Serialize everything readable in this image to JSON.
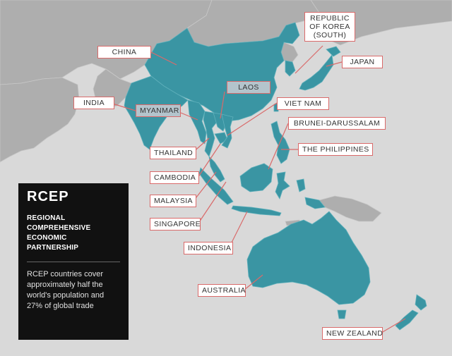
{
  "panel": {
    "title": "RCEP",
    "subtitle": "REGIONAL COMPREHENSIVE ECONOMIC PARTNERSHIP",
    "description": "RCEP countries cover approximately half the world's population and 27% of global trade"
  },
  "labels": {
    "china": "CHINA",
    "korea": "REPUBLIC OF KOREA (SOUTH)",
    "japan": "JAPAN",
    "laos": "LAOS",
    "india": "INDIA",
    "myanmar": "MYANMAR",
    "vietnam": "VIET NAM",
    "brunei": "BRUNEI-DARUSSALAM",
    "thailand": "THAILAND",
    "philippines": "THE PHILIPPINES",
    "cambodia": "CAMBODIA",
    "malaysia": "MALAYSIA",
    "singapore": "SINGAPORE",
    "indonesia": "INDONESIA",
    "australia": "AUSTRALIA",
    "new_zealand": "NEW ZEALAND"
  },
  "colors": {
    "member": "#3a95a3",
    "non_member": "#aeaeae",
    "water": "#d9d9d9",
    "leader": "#d96a6a"
  }
}
